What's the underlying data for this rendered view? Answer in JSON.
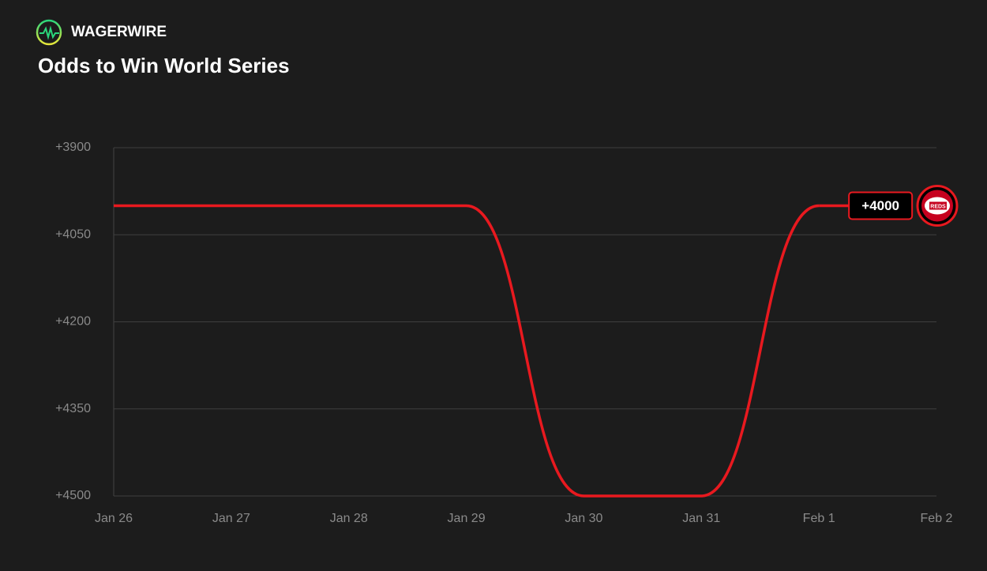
{
  "brand": "WAGERWIRE",
  "chart_data": {
    "type": "line",
    "title": "Odds to Win World Series",
    "categories": [
      "Jan 26",
      "Jan 27",
      "Jan 28",
      "Jan 29",
      "Jan 30",
      "Jan 31",
      "Feb 1",
      "Feb 2"
    ],
    "values": [
      4000,
      4000,
      4000,
      4000,
      4500,
      4500,
      4000,
      null
    ],
    "value_labels": [
      null,
      null,
      null,
      null,
      null,
      null,
      "+4000",
      null
    ],
    "color": "#e8191f",
    "ylim": [
      3900,
      4500
    ],
    "y_inverted": true,
    "yticks": [
      {
        "value": 3900,
        "label": "+3900"
      },
      {
        "value": 4050,
        "label": "+4050"
      },
      {
        "value": 4200,
        "label": "+4200"
      },
      {
        "value": 4350,
        "label": "+4350"
      },
      {
        "value": 4500,
        "label": "+4500"
      }
    ],
    "grid": true,
    "logo_label": "REDS"
  }
}
